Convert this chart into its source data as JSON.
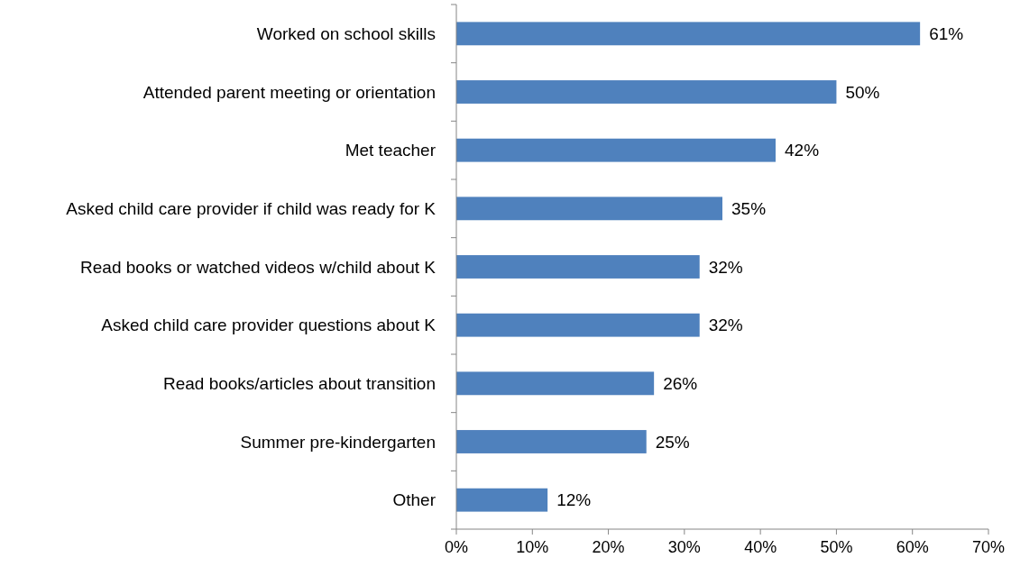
{
  "chart_data": {
    "type": "bar",
    "orientation": "horizontal",
    "categories": [
      "Worked on school skills",
      "Attended parent meeting or orientation",
      "Met teacher",
      "Asked child care provider if child was ready for K",
      "Read books or watched videos w/child about K",
      "Asked child care provider questions about K",
      "Read books/articles about transition",
      "Summer pre-kindergarten",
      "Other"
    ],
    "values": [
      61,
      50,
      42,
      35,
      32,
      32,
      26,
      25,
      12
    ],
    "value_labels": [
      "61%",
      "50%",
      "42%",
      "35%",
      "32%",
      "32%",
      "26%",
      "25%",
      "12%"
    ],
    "color": "#4f81bd",
    "xlim": [
      0,
      70
    ],
    "xticks": [
      {
        "value": 0,
        "label": "0%"
      },
      {
        "value": 10,
        "label": "10%"
      },
      {
        "value": 20,
        "label": "20%"
      },
      {
        "value": 30,
        "label": "30%"
      },
      {
        "value": 40,
        "label": "40%"
      },
      {
        "value": 50,
        "label": "50%"
      },
      {
        "value": 60,
        "label": "60%"
      },
      {
        "value": 70,
        "label": "70%"
      }
    ],
    "grid": false
  }
}
